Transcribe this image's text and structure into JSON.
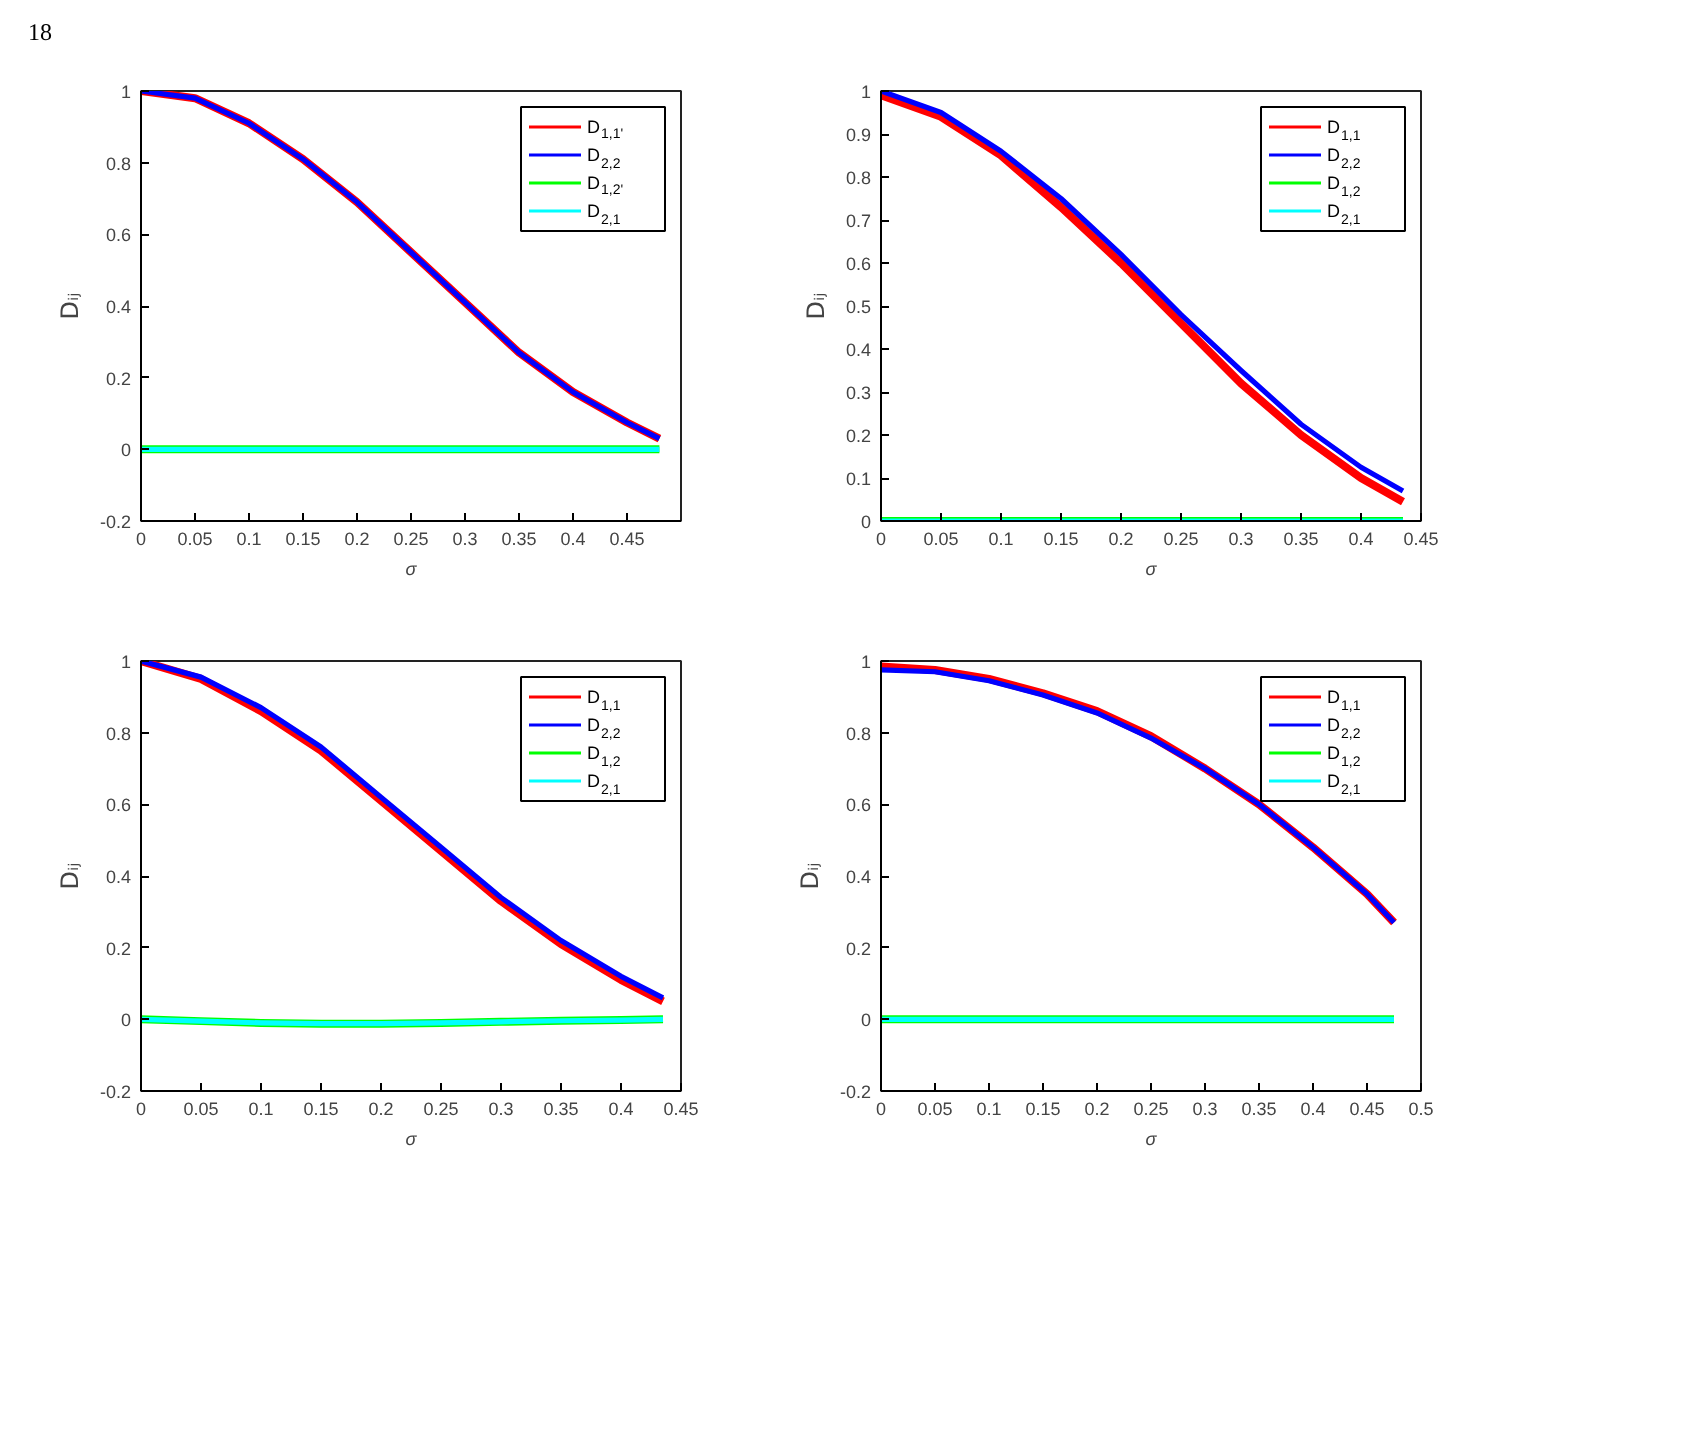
{
  "chart_data": [
    {
      "type": "line",
      "xlabel": "σ",
      "ylabel": "Dᵢⱼ",
      "annotations": [
        "18"
      ],
      "legend": "top right",
      "grid": false,
      "xlim": [
        0,
        0.5
      ],
      "ylim": [
        -0.2,
        1
      ],
      "xticks": [
        0,
        0.05,
        0.1,
        0.15,
        0.2,
        0.25,
        0.3,
        0.35,
        0.4,
        0.45
      ],
      "yticks": [
        -0.2,
        0,
        0.2,
        0.4,
        0.6,
        0.8,
        1
      ],
      "x": [
        0,
        0.05,
        0.1,
        0.15,
        0.2,
        0.25,
        0.3,
        0.35,
        0.4,
        0.45,
        0.48
      ],
      "series": [
        {
          "name": "D$_{1,1'}$",
          "color": "#ff0000",
          "values": [
            1,
            0.98,
            0.91,
            0.81,
            0.69,
            0.55,
            0.41,
            0.27,
            0.16,
            0.075,
            0.03
          ]
        },
        {
          "name": "D$_{2,2}$",
          "color": "#0000ff",
          "values": [
            1,
            0.98,
            0.91,
            0.81,
            0.69,
            0.55,
            0.41,
            0.27,
            0.16,
            0.075,
            0.03
          ]
        },
        {
          "name": "D$_{1,2'}$",
          "color": "#00ff00",
          "values": [
            0,
            0,
            0,
            0,
            0,
            0,
            0,
            0,
            0,
            0,
            0
          ]
        },
        {
          "name": "D$_{2,1}$",
          "color": "#00ffff",
          "values": [
            0,
            0,
            0,
            0,
            0,
            0,
            0,
            0,
            0,
            0,
            0
          ]
        }
      ]
    },
    {
      "type": "line",
      "xlabel": "σ",
      "ylabel": "Dᵢⱼ",
      "legend": "top right",
      "grid": false,
      "xlim": [
        0,
        0.45
      ],
      "ylim": [
        0,
        1
      ],
      "xticks": [
        0,
        0.05,
        0.1,
        0.15,
        0.2,
        0.25,
        0.3,
        0.35,
        0.4,
        0.45
      ],
      "yticks": [
        0,
        0.1,
        0.2,
        0.3,
        0.4,
        0.5,
        0.6,
        0.7,
        0.8,
        0.9,
        1
      ],
      "x": [
        0,
        0.05,
        0.1,
        0.15,
        0.2,
        0.25,
        0.3,
        0.35,
        0.4,
        0.435
      ],
      "series": [
        {
          "name": "D$_{1,1}$",
          "color": "#ff0000",
          "values": [
            0.99,
            0.94,
            0.85,
            0.73,
            0.6,
            0.46,
            0.32,
            0.2,
            0.1,
            0.045
          ]
        },
        {
          "name": "D$_{2,2}$",
          "color": "#0000ff",
          "values": [
            1,
            0.95,
            0.86,
            0.75,
            0.62,
            0.48,
            0.35,
            0.225,
            0.125,
            0.07
          ]
        },
        {
          "name": "D$_{1,2}$",
          "color": "#00ff00",
          "values": [
            0,
            0,
            0,
            0,
            0,
            0,
            0,
            0,
            0,
            0
          ]
        },
        {
          "name": "D$_{2,1}$",
          "color": "#00ffff",
          "values": [
            0,
            0,
            0,
            0,
            0,
            0,
            0,
            0,
            0,
            0
          ]
        }
      ]
    },
    {
      "type": "line",
      "xlabel": "σ",
      "ylabel": "Dᵢⱼ",
      "legend": "top right",
      "grid": false,
      "xlim": [
        0,
        0.45
      ],
      "ylim": [
        -0.2,
        1
      ],
      "xticks": [
        0,
        0.05,
        0.1,
        0.15,
        0.2,
        0.25,
        0.3,
        0.35,
        0.4,
        0.45
      ],
      "yticks": [
        -0.2,
        0,
        0.2,
        0.4,
        0.6,
        0.8,
        1
      ],
      "x": [
        0,
        0.05,
        0.1,
        0.15,
        0.2,
        0.25,
        0.3,
        0.35,
        0.4,
        0.435
      ],
      "series": [
        {
          "name": "D$_{1,1}$",
          "color": "#ff0000",
          "values": [
            1,
            0.95,
            0.86,
            0.75,
            0.61,
            0.47,
            0.33,
            0.21,
            0.11,
            0.05
          ]
        },
        {
          "name": "D$_{2,2}$",
          "color": "#0000ff",
          "values": [
            1,
            0.955,
            0.87,
            0.76,
            0.62,
            0.48,
            0.34,
            0.22,
            0.12,
            0.06
          ]
        },
        {
          "name": "D$_{1,2}$",
          "color": "#00ff00",
          "values": [
            0,
            -0.005,
            -0.01,
            -0.012,
            -0.012,
            -0.01,
            -0.007,
            -0.004,
            -0.002,
            0
          ]
        },
        {
          "name": "D$_{2,1}$",
          "color": "#00ffff",
          "values": [
            0,
            -0.005,
            -0.01,
            -0.012,
            -0.012,
            -0.01,
            -0.007,
            -0.004,
            -0.002,
            0
          ]
        }
      ]
    },
    {
      "type": "line",
      "xlabel": "σ",
      "ylabel": "Dᵢⱼ",
      "legend": "top right",
      "grid": false,
      "xlim": [
        0,
        0.5
      ],
      "ylim": [
        -0.2,
        1
      ],
      "xticks": [
        0,
        0.05,
        0.1,
        0.15,
        0.2,
        0.25,
        0.3,
        0.35,
        0.4,
        0.45,
        0.5
      ],
      "yticks": [
        -0.2,
        0,
        0.2,
        0.4,
        0.6,
        0.8,
        1
      ],
      "x": [
        0,
        0.05,
        0.1,
        0.15,
        0.2,
        0.25,
        0.3,
        0.35,
        0.4,
        0.45,
        0.475
      ],
      "series": [
        {
          "name": "D$_{1,1}$",
          "color": "#ff0000",
          "values": [
            0.985,
            0.975,
            0.95,
            0.91,
            0.86,
            0.79,
            0.7,
            0.6,
            0.48,
            0.35,
            0.27
          ]
        },
        {
          "name": "D$_{2,2}$",
          "color": "#0000ff",
          "values": [
            0.975,
            0.97,
            0.945,
            0.905,
            0.855,
            0.785,
            0.7,
            0.6,
            0.48,
            0.35,
            0.27
          ]
        },
        {
          "name": "D$_{1,2}$",
          "color": "#00ff00",
          "values": [
            0,
            0,
            0,
            0,
            0,
            0,
            0,
            0,
            0,
            0,
            0
          ]
        },
        {
          "name": "D$_{2,1}$",
          "color": "#00ffff",
          "values": [
            0,
            0,
            0,
            0,
            0,
            0,
            0,
            0,
            0,
            0,
            0
          ]
        }
      ]
    }
  ]
}
